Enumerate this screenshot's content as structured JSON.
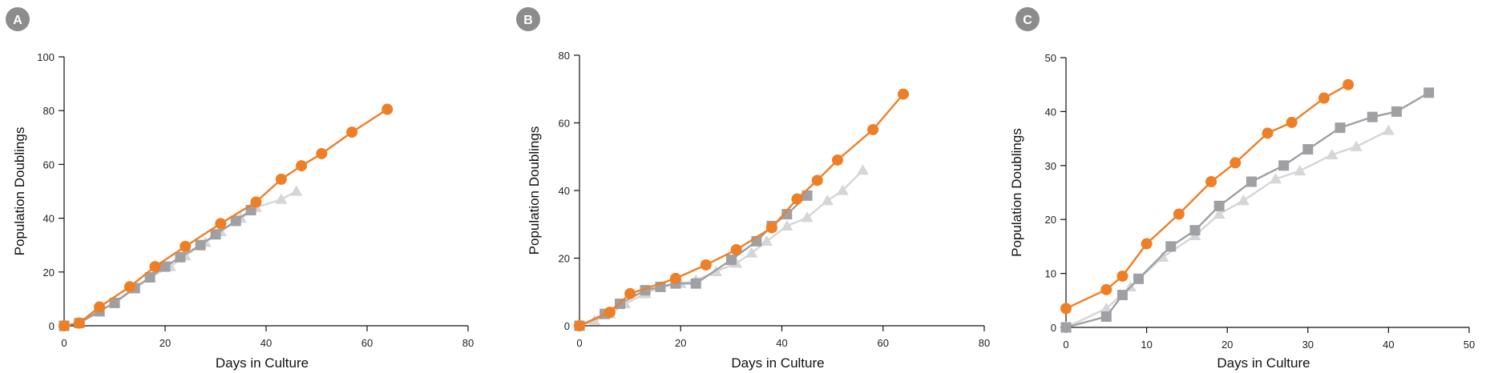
{
  "colors": {
    "orange": "#EE7F26",
    "dark_gray": "#9FA0A3",
    "light_gray": "#D5D6D7",
    "badge": "#8C8C8C"
  },
  "marker_shapes": [
    "circle",
    "square",
    "triangle"
  ],
  "chart_data": [
    {
      "panel": "A",
      "type": "scatter",
      "xlabel": "Days in Culture",
      "ylabel": "Population Doublings",
      "xlim": [
        0,
        80
      ],
      "ylim": [
        0,
        100
      ],
      "xticks": [
        0,
        20,
        40,
        60,
        80
      ],
      "yticks": [
        0,
        20,
        40,
        60,
        80,
        100
      ],
      "grid": false,
      "series": [
        {
          "color": "#D5D6D7",
          "marker": "triangle",
          "x": [
            0,
            3,
            7,
            10,
            14,
            17,
            21,
            24,
            28,
            31,
            35,
            38,
            43,
            46
          ],
          "y": [
            0,
            1,
            5,
            9,
            14,
            18,
            22,
            26,
            31,
            35,
            40,
            44,
            47,
            50
          ]
        },
        {
          "color": "#9FA0A3",
          "marker": "square",
          "x": [
            0,
            3,
            7,
            10,
            14,
            17,
            20,
            23,
            27,
            30,
            34,
            37
          ],
          "y": [
            0,
            1,
            5.5,
            8.5,
            14,
            18,
            22,
            25.5,
            30,
            34,
            39,
            43
          ]
        },
        {
          "color": "#EE7F26",
          "marker": "circle",
          "x": [
            0,
            3,
            7,
            13,
            18,
            24,
            31,
            38,
            43,
            47,
            51,
            57,
            64
          ],
          "y": [
            0,
            1,
            7,
            14.5,
            22,
            29.5,
            38,
            46,
            54.5,
            59.5,
            64,
            72,
            80.5
          ]
        }
      ]
    },
    {
      "panel": "B",
      "type": "scatter",
      "xlabel": "Days in Culture",
      "ylabel": "Population Doublings",
      "xlim": [
        0,
        80
      ],
      "ylim": [
        0,
        80
      ],
      "xticks": [
        0,
        20,
        40,
        60,
        80
      ],
      "yticks": [
        0,
        20,
        40,
        60,
        80
      ],
      "grid": false,
      "series": [
        {
          "color": "#D5D6D7",
          "marker": "triangle",
          "x": [
            0,
            3,
            6,
            9,
            13,
            16,
            20,
            23,
            27,
            31,
            34,
            37,
            41,
            45,
            49,
            52,
            56
          ],
          "y": [
            0,
            1.5,
            3.5,
            6.5,
            9.5,
            11.5,
            12.5,
            13.5,
            16,
            18.5,
            21.5,
            25,
            29.5,
            32,
            37,
            40,
            46
          ]
        },
        {
          "color": "#9FA0A3",
          "marker": "square",
          "x": [
            0,
            5,
            8,
            13,
            16,
            19,
            23,
            30,
            35,
            38,
            41,
            45
          ],
          "y": [
            0,
            3.5,
            6.5,
            10.5,
            11.5,
            12.5,
            12.5,
            19.5,
            25,
            29.5,
            33,
            38.5
          ]
        },
        {
          "color": "#EE7F26",
          "marker": "circle",
          "x": [
            0,
            6,
            10,
            19,
            25,
            31,
            38,
            43,
            47,
            51,
            58,
            64
          ],
          "y": [
            0,
            4,
            9.5,
            14,
            18,
            22.5,
            29,
            37.5,
            43,
            49,
            58,
            68.5
          ]
        }
      ]
    },
    {
      "panel": "C",
      "type": "scatter",
      "xlabel": "Days in Culture",
      "ylabel": "Population Doublings",
      "xlim": [
        0,
        50
      ],
      "ylim": [
        0,
        50
      ],
      "xticks": [
        0,
        10,
        20,
        30,
        40,
        50
      ],
      "yticks": [
        0,
        10,
        20,
        30,
        40,
        50
      ],
      "grid": false,
      "series": [
        {
          "color": "#D5D6D7",
          "marker": "triangle",
          "x": [
            0,
            5,
            8,
            12,
            16,
            19,
            22,
            26,
            29,
            33,
            36,
            40
          ],
          "y": [
            0,
            3.5,
            7.5,
            13,
            17,
            21,
            23.5,
            27.5,
            29,
            32,
            33.5,
            36.5
          ]
        },
        {
          "color": "#9FA0A3",
          "marker": "square",
          "x": [
            0,
            5,
            7,
            9,
            13,
            16,
            19,
            23,
            27,
            30,
            34,
            38,
            41,
            45
          ],
          "y": [
            0,
            2,
            6,
            9,
            15,
            18,
            22.5,
            27,
            30,
            33,
            37,
            39,
            40,
            43.5
          ]
        },
        {
          "color": "#EE7F26",
          "marker": "circle",
          "x": [
            0,
            5,
            7,
            10,
            14,
            18,
            21,
            25,
            28,
            32,
            35
          ],
          "y": [
            3.5,
            7,
            9.5,
            15.5,
            21,
            27,
            30.5,
            36,
            38,
            42.5,
            45
          ]
        }
      ]
    }
  ]
}
